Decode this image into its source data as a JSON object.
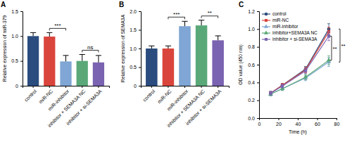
{
  "chart_data": [
    {
      "type": "bar",
      "title": "A",
      "y_label": "Relative expression of miR-379",
      "categories": [
        "control",
        "miR-NC",
        "miR-inhibitor",
        "inhibitor + SEMA3A NC",
        "inhibitor + si-SEMA3A"
      ],
      "values": [
        1.0,
        0.99,
        0.49,
        0.5,
        0.47
      ],
      "errors": [
        0.07,
        0.08,
        0.12,
        0.13,
        0.14
      ],
      "colors": [
        "#2b4c7e",
        "#d9453c",
        "#7fa6d4",
        "#5aa878",
        "#7a63b1"
      ],
      "ylim": [
        0,
        1.5
      ],
      "yticks": [
        0,
        0.5,
        {
          "value": 1,
          "label": "1.0"
        },
        1.5
      ],
      "annotations": [
        {
          "text": "***",
          "between": [
            "miR-NC",
            "miR-inhibitor"
          ]
        },
        {
          "text": "ns",
          "between": [
            "inhibitor + SEMA3A NC",
            "inhibitor + si-SEMA3A"
          ]
        }
      ]
    },
    {
      "type": "bar",
      "title": "B",
      "y_label": "Relative expression of SEMA3A",
      "categories": [
        "control",
        "miR-NC",
        "miR-inhibitor",
        "inhibitor + SEMA3A NC",
        "inhibitor + si-SEMA3A"
      ],
      "values": [
        1.0,
        1.0,
        1.6,
        1.62,
        1.22
      ],
      "errors": [
        0.07,
        0.07,
        0.13,
        0.14,
        0.12
      ],
      "colors": [
        "#2b4c7e",
        "#d9453c",
        "#7fa6d4",
        "#5aa878",
        "#7a63b1"
      ],
      "ylim": [
        0,
        2
      ],
      "yticks": [
        0,
        0.5,
        {
          "value": 1,
          "label": "1.0"
        },
        1.5,
        {
          "value": 2,
          "label": "2.0"
        }
      ],
      "annotations": [
        {
          "text": "***",
          "between": [
            "miR-NC",
            "miR-inhibitor"
          ]
        },
        {
          "text": "**",
          "between": [
            "inhibitor + SEMA3A NC",
            "inhibitor + si-SEMA3A"
          ]
        }
      ]
    },
    {
      "type": "line",
      "title": "C",
      "x_label": "Time (h)",
      "y_label": "OD value (450 nm)",
      "x": [
        12,
        24,
        48,
        72
      ],
      "series": [
        {
          "name": "control",
          "color": "#2b4c7e",
          "marker": "circle",
          "values": [
            0.28,
            0.37,
            0.55,
            1.0
          ],
          "errors": [
            0.02,
            0.02,
            0.03,
            0.06
          ]
        },
        {
          "name": "miR-NC",
          "color": "#d9453c",
          "marker": "square",
          "values": [
            0.28,
            0.37,
            0.54,
            0.97
          ],
          "errors": [
            0.02,
            0.02,
            0.03,
            0.05
          ]
        },
        {
          "name": "miR-inhibitor",
          "color": "#7fa6d4",
          "marker": "triangle",
          "values": [
            0.27,
            0.33,
            0.45,
            0.63
          ],
          "errors": [
            0.02,
            0.02,
            0.03,
            0.05
          ]
        },
        {
          "name": "inhibitor+SEMA3A NC",
          "color": "#5aa878",
          "marker": "triangle",
          "values": [
            0.27,
            0.33,
            0.46,
            0.65
          ],
          "errors": [
            0.02,
            0.02,
            0.03,
            0.05
          ]
        },
        {
          "name": "inhibitor + si-SEMA3A",
          "color": "#7a63b1",
          "marker": "square",
          "values": [
            0.28,
            0.36,
            0.53,
            0.92
          ],
          "errors": [
            0.02,
            0.02,
            0.03,
            0.05
          ]
        }
      ],
      "xlim": [
        0,
        80
      ],
      "xticks": [
        0,
        20,
        40,
        60,
        80
      ],
      "ylim": [
        0,
        1.2
      ],
      "yticks": [
        {
          "value": 0,
          "label": "0.0"
        },
        {
          "value": 0.2,
          "label": "0.2"
        },
        {
          "value": 0.4,
          "label": "0.4"
        },
        {
          "value": 0.6,
          "label": "0.6"
        },
        {
          "value": 0.8,
          "label": "0.8"
        },
        {
          "value": 1,
          "label": "1.0"
        },
        {
          "value": 1.2,
          "label": "1.2"
        }
      ],
      "legend": "upper left",
      "annotations": [
        {
          "text": "**",
          "between": [
            "control",
            "miR-inhibitor"
          ]
        },
        {
          "text": "**",
          "between": [
            "inhibitor + si-SEMA3A",
            "inhibitor+SEMA3A NC"
          ]
        }
      ]
    }
  ]
}
